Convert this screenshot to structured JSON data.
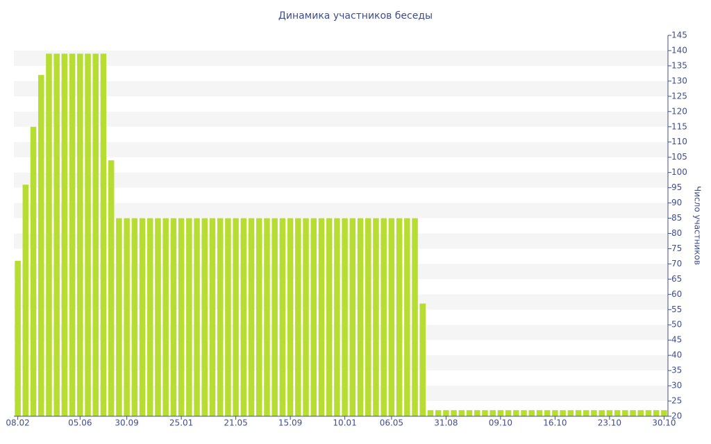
{
  "chart_data": {
    "type": "bar",
    "title": "Динамика участников беседы",
    "y_label": "Число участников",
    "color": "#b8dd32",
    "categories": [
      "08.02",
      null,
      null,
      null,
      null,
      null,
      null,
      null,
      "05.06",
      null,
      null,
      null,
      null,
      null,
      "30.09",
      null,
      null,
      null,
      null,
      null,
      null,
      "25.01",
      null,
      null,
      null,
      null,
      null,
      null,
      "21.05",
      null,
      null,
      null,
      null,
      null,
      null,
      "15.09",
      null,
      null,
      null,
      null,
      null,
      null,
      "10.01",
      null,
      null,
      null,
      null,
      null,
      "06.05",
      null,
      null,
      null,
      null,
      null,
      null,
      "31.08",
      null,
      null,
      null,
      null,
      null,
      null,
      "09.10",
      null,
      null,
      null,
      null,
      null,
      null,
      "16.10",
      null,
      null,
      null,
      null,
      null,
      null,
      "23.10",
      null,
      null,
      null,
      null,
      null,
      null,
      "30.10"
    ],
    "values": [
      71,
      96,
      115,
      132,
      139,
      139,
      139,
      139,
      139,
      139,
      139,
      139,
      104,
      85,
      85,
      85,
      85,
      85,
      85,
      85,
      85,
      85,
      85,
      85,
      85,
      85,
      85,
      85,
      85,
      85,
      85,
      85,
      85,
      85,
      85,
      85,
      85,
      85,
      85,
      85,
      85,
      85,
      85,
      85,
      85,
      85,
      85,
      85,
      85,
      85,
      85,
      85,
      57,
      22,
      22,
      22,
      22,
      22,
      22,
      22,
      22,
      22,
      22,
      22,
      22,
      22,
      22,
      22,
      22,
      22,
      22,
      22,
      22,
      22,
      22,
      22,
      22,
      22,
      22,
      22,
      22,
      22,
      22,
      22
    ],
    "ylim": [
      20,
      145
    ],
    "yticks": [
      20,
      25,
      30,
      35,
      40,
      45,
      50,
      55,
      60,
      65,
      70,
      75,
      80,
      85,
      90,
      95,
      100,
      105,
      110,
      115,
      120,
      125,
      130,
      135,
      140,
      145
    ],
    "grid": true
  }
}
